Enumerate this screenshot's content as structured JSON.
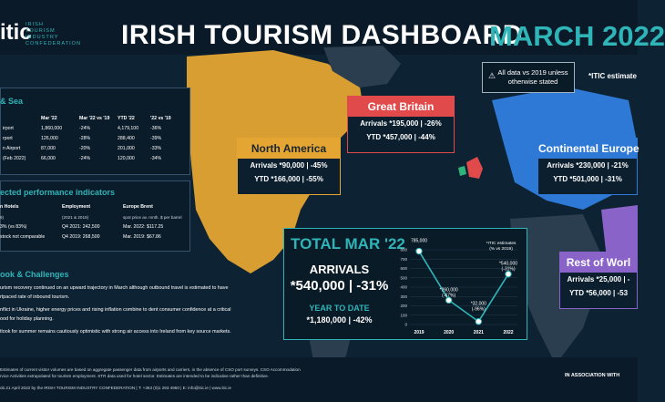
{
  "header": {
    "logo_mark": "itic",
    "logo_text": "Irish\nTourism\nIndustry\nConfederation",
    "title": "IRISH TOURISM DASHBOARD",
    "month": "MARCH 2022",
    "note_icon": "warning-icon",
    "note": "All data vs 2019 unless otherwise stated",
    "itic_estimate": "*ITIC estimate"
  },
  "colors": {
    "teal": "#2fb4b7",
    "orange": "#e5a532",
    "red": "#e04a4a",
    "blue": "#2f79d6",
    "purple": "#8a63c9",
    "green_land": "#2fb47a"
  },
  "air_sea": {
    "title": "& Sea",
    "headers": [
      "",
      "Mar '22",
      "Mar '22 vs '19",
      "YTD '22",
      "'22 vs '19"
    ],
    "rows": [
      [
        "irport",
        "1,860,000",
        "-24%",
        "4,179,100",
        "-36%"
      ],
      [
        "rport",
        "126,000",
        "-28%",
        "288,400",
        "-39%"
      ],
      [
        "n Airport",
        "87,000",
        "-20%",
        "201,000",
        "-33%"
      ],
      [
        "(Feb 2022)",
        "66,000",
        "-24%",
        "120,000",
        "-34%"
      ]
    ]
  },
  "kpi": {
    "title": "ected performance indicators",
    "col1": {
      "head": "n Hotels",
      "sub": "9)",
      "r1": "3% (vs 83%)",
      "r2": "stock not comparable"
    },
    "col2": {
      "head": "Employment",
      "sub": "(2021 & 2019)",
      "r1": "Q4 2021: 242,500",
      "r2": "Q4 2019: 268,500"
    },
    "col3": {
      "head": "Europe Brent",
      "sub": "spot price av. mnth. $ per barrel",
      "r1": "Mar. 2022: $117.25",
      "r2": "Mar. 2019: $67.86"
    }
  },
  "outlook": {
    "title": "ook & Challenges",
    "lines": [
      "urism recovery continued on an upward trajectory in March although outbound travel is estimated to have",
      "rtpaced rate of inbound tourism.",
      "nflict in Ukraine, higher energy prices and rising inflation combine to dent consumer confidence at a critical",
      "ood for holiday planning.",
      "tlook for summer remains cautiously optimistic with strong air access into Ireland from key source markets."
    ]
  },
  "footer": {
    "line1": "Estimates of current visitor volumes are based on aggregate passenger data from airports and carriers, in the absence of CSO port surveys. CSO Accommodation",
    "line2": "rvice Activities extrapolated for tourism employment. STR data used for hotel sector. Estimates are intended to be indicative rather than definitive.",
    "line3": "ob.21 April 2022 by the IRISH TOURISM INDUSTRY CONFEDERATION  |  T: +353 (0)1 293 4950  |  E: info@itic.ie  |  www.itic.ie",
    "assoc": "IN ASSOCIATION WITH"
  },
  "regions": {
    "north_america": {
      "name": "North America",
      "arrivals": "Arrivals *90,000 | -45%",
      "ytd": "YTD *166,000 | -55%"
    },
    "great_britain": {
      "name": "Great Britain",
      "arrivals": "Arrivals *195,000 | -26%",
      "ytd": "YTD *457,000 | -44%"
    },
    "continental_europe": {
      "name": "Continental Europe",
      "arrivals": "Arrivals *230,000 | -21%",
      "ytd": "YTD *501,000 | -31%"
    },
    "rest_of_world": {
      "name": "Rest of Worl",
      "arrivals": "Arrivals *25,000 | -",
      "ytd": "YTD *56,000 | -53"
    }
  },
  "total": {
    "title": "TOTAL MAR '22",
    "arrivals_label": "ARRIVALS",
    "arrivals_value": "*540,000 | -31%",
    "ytd_label": "YEAR TO DATE",
    "ytd_value": "*1,180,000 | -42%"
  },
  "chart_data": {
    "type": "line",
    "title": "",
    "xlabel": "",
    "ylabel": "",
    "note": "*ITIC estimates\n(% vs 2019)",
    "x": [
      "2019",
      "2020",
      "2021",
      "2022"
    ],
    "yticks": [
      "800",
      "700",
      "600",
      "500",
      "400",
      "300",
      "200",
      "100",
      "0"
    ],
    "ylim": [
      0,
      800
    ],
    "values": [
      785,
      260,
      32,
      540
    ],
    "point_labels": [
      [
        "785,000",
        ""
      ],
      [
        "*260,000",
        "(-67%)"
      ],
      [
        "*32,000",
        "(-96%)"
      ],
      [
        "*540,000",
        "(-31%)"
      ]
    ]
  }
}
